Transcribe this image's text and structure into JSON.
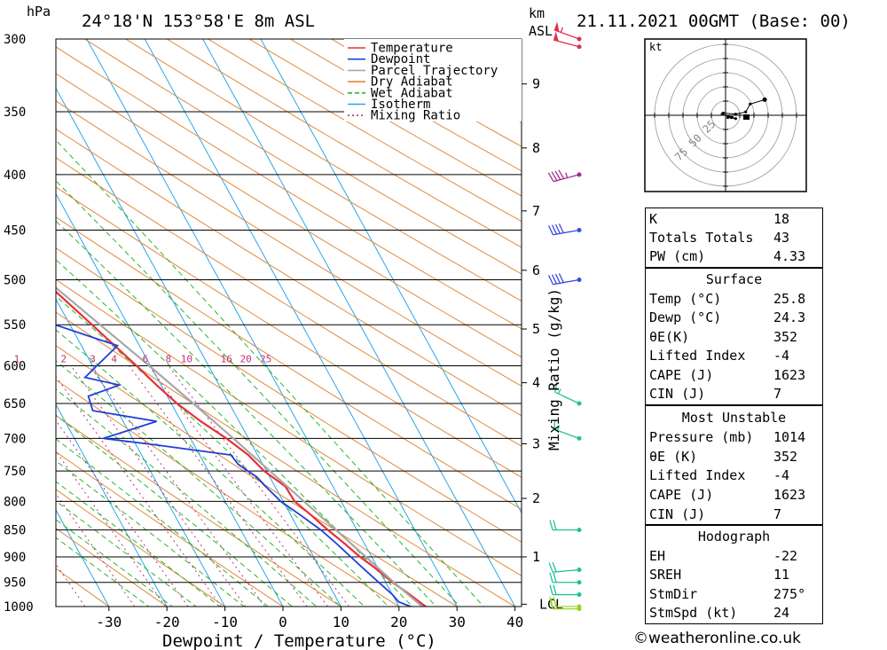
{
  "header": {
    "pressure_unit": "hPa",
    "location": "24°18'N 153°58'E 8m ASL",
    "km_unit": "km",
    "asl_label": "ASL",
    "datetime": "21.11.2021 00GMT (Base: 00)"
  },
  "credit": "©weatheronline.co.uk",
  "colors": {
    "temperature": "#e8303a",
    "dewpoint": "#1f3fd9",
    "parcel": "#a8a8a8",
    "dry_adiabat": "#e08a3a",
    "wet_adiabat": "#2bb52b",
    "isotherm": "#2aa6e8",
    "mixing_ratio": "#c0307a"
  },
  "chart_data": {
    "type": "line",
    "subtype": "skew-T log-P",
    "xlabel": "Dewpoint / Temperature (°C)",
    "ylabel_right": "Mixing Ratio (g/kg)",
    "x_ticks": [
      -30,
      -20,
      -10,
      0,
      10,
      20,
      30,
      40
    ],
    "xlim": [
      -40,
      40
    ],
    "pressure_levels": [
      300,
      350,
      400,
      450,
      500,
      550,
      600,
      650,
      700,
      750,
      800,
      850,
      900,
      950,
      1000
    ],
    "ylim": [
      1000,
      300
    ],
    "km_ticks": [
      {
        "label": "1",
        "p": 900
      },
      {
        "label": "2",
        "p": 795
      },
      {
        "label": "3",
        "p": 708
      },
      {
        "label": "4",
        "p": 622
      },
      {
        "label": "5",
        "p": 555
      },
      {
        "label": "6",
        "p": 490
      },
      {
        "label": "7",
        "p": 432
      },
      {
        "label": "8",
        "p": 378
      },
      {
        "label": "9",
        "p": 330
      },
      {
        "label": "LCL",
        "p": 995
      }
    ],
    "mixing_ratio_labels": [
      "1",
      "2",
      "3",
      "4",
      "6",
      "8",
      "10",
      "16",
      "20",
      "25"
    ],
    "legend": [
      "Temperature",
      "Dewpoint",
      "Parcel Trajectory",
      "Dry Adiabat",
      "Wet Adiabat",
      "Isotherm",
      "Mixing Ratio"
    ],
    "series": [
      {
        "name": "Temperature",
        "points": [
          {
            "p": 1005,
            "t": 25.8
          },
          {
            "p": 1000,
            "t": 24.6
          },
          {
            "p": 975,
            "t": 23.0
          },
          {
            "p": 950,
            "t": 21.2
          },
          {
            "p": 925,
            "t": 19.8
          },
          {
            "p": 900,
            "t": 18.0
          },
          {
            "p": 875,
            "t": 16.6
          },
          {
            "p": 850,
            "t": 15.0
          },
          {
            "p": 825,
            "t": 13.6
          },
          {
            "p": 800,
            "t": 12.0
          },
          {
            "p": 775,
            "t": 11.8
          },
          {
            "p": 750,
            "t": 9.6
          },
          {
            "p": 725,
            "t": 8.4
          },
          {
            "p": 700,
            "t": 6.2
          },
          {
            "p": 675,
            "t": 3.4
          },
          {
            "p": 650,
            "t": 1.0
          },
          {
            "p": 625,
            "t": -0.8
          },
          {
            "p": 600,
            "t": -2.4
          },
          {
            "p": 550,
            "t": -6.2
          },
          {
            "p": 500,
            "t": -10.4
          },
          {
            "p": 480,
            "t": -12.4
          },
          {
            "p": 450,
            "t": -14.8
          },
          {
            "p": 400,
            "t": -21.2
          },
          {
            "p": 380,
            "t": -23.4
          },
          {
            "p": 370,
            "t": -25.2
          },
          {
            "p": 350,
            "t": -29.2
          },
          {
            "p": 330,
            "t": -32.4
          },
          {
            "p": 300,
            "t": -37.2
          }
        ]
      },
      {
        "name": "Dewpoint",
        "points": [
          {
            "p": 1005,
            "t": 24.3
          },
          {
            "p": 1000,
            "t": 22.0
          },
          {
            "p": 990,
            "t": 20.4
          },
          {
            "p": 975,
            "t": 20.0
          },
          {
            "p": 950,
            "t": 18.8
          },
          {
            "p": 925,
            "t": 17.6
          },
          {
            "p": 900,
            "t": 16.4
          },
          {
            "p": 875,
            "t": 15.2
          },
          {
            "p": 850,
            "t": 13.8
          },
          {
            "p": 825,
            "t": 11.8
          },
          {
            "p": 800,
            "t": 9.6
          },
          {
            "p": 775,
            "t": 8.4
          },
          {
            "p": 760,
            "t": 7.8
          },
          {
            "p": 740,
            "t": 5.8
          },
          {
            "p": 725,
            "t": 5.4
          },
          {
            "p": 710,
            "t": -6.4
          },
          {
            "p": 700,
            "t": -15.0
          },
          {
            "p": 675,
            "t": -4.2
          },
          {
            "p": 660,
            "t": -14.2
          },
          {
            "p": 640,
            "t": -13.6
          },
          {
            "p": 625,
            "t": -7.2
          },
          {
            "p": 615,
            "t": -12.4
          },
          {
            "p": 575,
            "t": -3.8
          },
          {
            "p": 525,
            "t": -21.8
          },
          {
            "p": 505,
            "t": -14.6
          },
          {
            "p": 490,
            "t": -19.8
          },
          {
            "p": 480,
            "t": -6.6
          },
          {
            "p": 470,
            "t": -20.8
          },
          {
            "p": 455,
            "t": -16.0
          },
          {
            "p": 450,
            "t": -8.4
          },
          {
            "p": 430,
            "t": -19.6
          },
          {
            "p": 420,
            "t": -13.0
          },
          {
            "p": 400,
            "t": -7.2
          },
          {
            "p": 385,
            "t": -2.4
          },
          {
            "p": 380,
            "t": -11.4
          },
          {
            "p": 368,
            "t": -7.2
          },
          {
            "p": 363,
            "t": 0.0
          },
          {
            "p": 358,
            "t": -12.2
          },
          {
            "p": 345,
            "t": -7.8
          },
          {
            "p": 338,
            "t": 2.6
          },
          {
            "p": 332,
            "t": -14.0
          },
          {
            "p": 320,
            "t": -12.6
          },
          {
            "p": 308,
            "t": -11.4
          },
          {
            "p": 300,
            "t": -12.8
          }
        ]
      },
      {
        "name": "Parcel Trajectory",
        "points": [
          {
            "p": 1000,
            "t": 24.0
          },
          {
            "p": 950,
            "t": 21.4
          },
          {
            "p": 900,
            "t": 19.0
          },
          {
            "p": 850,
            "t": 16.4
          },
          {
            "p": 800,
            "t": 13.6
          },
          {
            "p": 750,
            "t": 10.6
          },
          {
            "p": 700,
            "t": 7.4
          },
          {
            "p": 650,
            "t": 3.8
          },
          {
            "p": 600,
            "t": -0.2
          },
          {
            "p": 550,
            "t": -4.8
          },
          {
            "p": 500,
            "t": -9.8
          },
          {
            "p": 450,
            "t": -15.6
          },
          {
            "p": 400,
            "t": -22.6
          },
          {
            "p": 370,
            "t": -27.4
          }
        ]
      }
    ]
  },
  "wind_barbs": [
    {
      "p": 1005,
      "dir": 270,
      "speed": 10
    },
    {
      "p": 1000,
      "dir": 270,
      "speed": 20
    },
    {
      "p": 975,
      "dir": 270,
      "speed": 20
    },
    {
      "p": 950,
      "dir": 270,
      "speed": 20
    },
    {
      "p": 925,
      "dir": 265,
      "speed": 20
    },
    {
      "p": 850,
      "dir": 270,
      "speed": 20
    },
    {
      "p": 700,
      "dir": 290,
      "speed": 15
    },
    {
      "p": 650,
      "dir": 295,
      "speed": 15
    },
    {
      "p": 500,
      "dir": 260,
      "speed": 40
    },
    {
      "p": 450,
      "dir": 260,
      "speed": 40
    },
    {
      "p": 400,
      "dir": 255,
      "speed": 45
    },
    {
      "p": 305,
      "dir": 285,
      "speed": 50
    },
    {
      "p": 300,
      "dir": 290,
      "speed": 55
    }
  ],
  "hodograph": {
    "unit": "kt",
    "rings": [
      "25",
      "50",
      "75"
    ],
    "points": [
      [
        3,
        -1
      ],
      [
        2,
        -2
      ],
      [
        6,
        -2
      ],
      [
        9,
        -3
      ],
      [
        5,
        -2
      ],
      [
        -3,
        1
      ],
      [
        -2,
        2
      ],
      [
        9,
        1
      ],
      [
        18,
        3
      ],
      [
        22,
        10
      ],
      [
        35,
        14
      ]
    ]
  },
  "indices": [
    {
      "label": "K",
      "value": "18"
    },
    {
      "label": "Totals Totals",
      "value": "43"
    },
    {
      "label": "PW (cm)",
      "value": "4.33"
    }
  ],
  "surface": {
    "title": "Surface",
    "rows": [
      {
        "label": "Temp (°C)",
        "value": "25.8"
      },
      {
        "label": "Dewp (°C)",
        "value": "24.3"
      },
      {
        "label": "θE(K)",
        "value": "352"
      },
      {
        "label": "Lifted Index",
        "value": "-4"
      },
      {
        "label": "CAPE (J)",
        "value": "1623"
      },
      {
        "label": "CIN (J)",
        "value": "7"
      }
    ]
  },
  "most_unstable": {
    "title": "Most Unstable",
    "rows": [
      {
        "label": "Pressure (mb)",
        "value": "1014"
      },
      {
        "label": "θE (K)",
        "value": "352"
      },
      {
        "label": "Lifted Index",
        "value": "-4"
      },
      {
        "label": "CAPE (J)",
        "value": "1623"
      },
      {
        "label": "CIN (J)",
        "value": "7"
      }
    ]
  },
  "hodograph_table": {
    "title": "Hodograph",
    "rows": [
      {
        "label": "EH",
        "value": "-22"
      },
      {
        "label": "SREH",
        "value": "11"
      },
      {
        "label": "StmDir",
        "value": "275°"
      },
      {
        "label": "StmSpd (kt)",
        "value": "24"
      }
    ]
  }
}
